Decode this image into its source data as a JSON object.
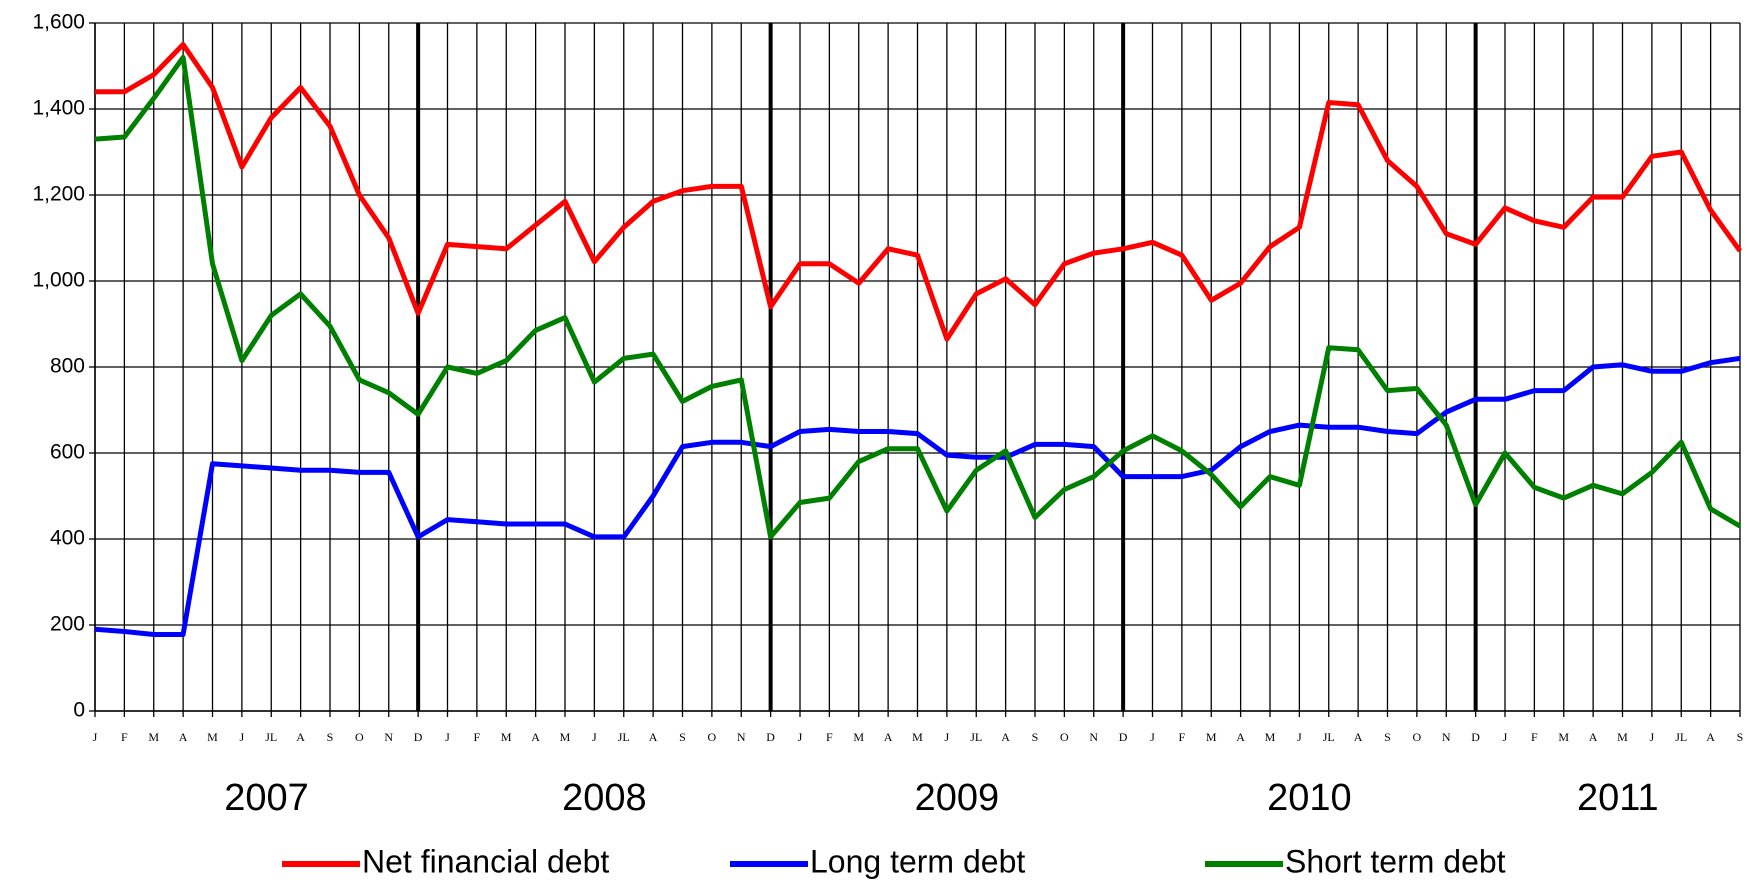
{
  "chart_data": {
    "type": "line",
    "categories": [
      "J",
      "F",
      "M",
      "A",
      "M",
      "J",
      "JL",
      "A",
      "S",
      "O",
      "N",
      "D",
      "J",
      "F",
      "M",
      "A",
      "M",
      "J",
      "JL",
      "A",
      "S",
      "O",
      "N",
      "D",
      "J",
      "F",
      "M",
      "A",
      "M",
      "J",
      "JL",
      "A",
      "S",
      "O",
      "N",
      "D",
      "J",
      "F",
      "M",
      "A",
      "M",
      "J",
      "JL",
      "A",
      "S",
      "O",
      "N",
      "D",
      "J",
      "F",
      "M",
      "A",
      "M",
      "J",
      "JL",
      "A",
      "S"
    ],
    "x_groups": [
      "2007",
      "2008",
      "2009",
      "2010",
      "2011"
    ],
    "series": [
      {
        "name": "Net financial debt",
        "color": "#ff0000",
        "values": [
          1440,
          1440,
          1480,
          1550,
          1450,
          1265,
          1380,
          1450,
          1360,
          1200,
          1100,
          925,
          1085,
          1080,
          1075,
          1130,
          1185,
          1045,
          1125,
          1185,
          1210,
          1220,
          1220,
          940,
          1040,
          1040,
          995,
          1075,
          1060,
          865,
          970,
          1005,
          945,
          1040,
          1065,
          1075,
          1090,
          1060,
          955,
          995,
          1080,
          1125,
          1415,
          1410,
          1280,
          1220,
          1110,
          1085,
          1170,
          1140,
          1125,
          1195,
          1195,
          1290,
          1300,
          1165,
          1070
        ]
      },
      {
        "name": "Long term debt",
        "color": "#0000ff",
        "values": [
          190,
          185,
          178,
          178,
          575,
          570,
          565,
          560,
          560,
          555,
          555,
          405,
          445,
          440,
          435,
          435,
          435,
          405,
          405,
          500,
          615,
          625,
          625,
          615,
          650,
          655,
          650,
          650,
          645,
          595,
          590,
          590,
          620,
          620,
          615,
          545,
          545,
          545,
          560,
          615,
          650,
          665,
          660,
          660,
          650,
          645,
          695,
          725,
          725,
          745,
          745,
          800,
          805,
          790,
          790,
          810,
          820
        ]
      },
      {
        "name": "Short term debt",
        "color": "#008000",
        "values": [
          1330,
          1335,
          1425,
          1520,
          1040,
          815,
          920,
          970,
          895,
          770,
          740,
          690,
          800,
          785,
          815,
          885,
          915,
          765,
          820,
          830,
          720,
          755,
          770,
          405,
          485,
          495,
          580,
          610,
          610,
          465,
          560,
          605,
          450,
          515,
          545,
          605,
          640,
          605,
          550,
          475,
          545,
          525,
          845,
          840,
          745,
          750,
          665,
          480,
          600,
          520,
          495,
          525,
          505,
          555,
          625,
          470,
          430
        ]
      }
    ],
    "ylim": [
      0,
      1600
    ],
    "yticks": [
      0,
      200,
      400,
      600,
      800,
      {
        "value": 1000,
        "label": "1,000"
      },
      {
        "value": 1200,
        "label": "1,200"
      },
      {
        "value": 1400,
        "label": "1,400"
      },
      {
        "value": 1600,
        "label": "1,600"
      }
    ],
    "grid": true,
    "legend": "bottom"
  }
}
